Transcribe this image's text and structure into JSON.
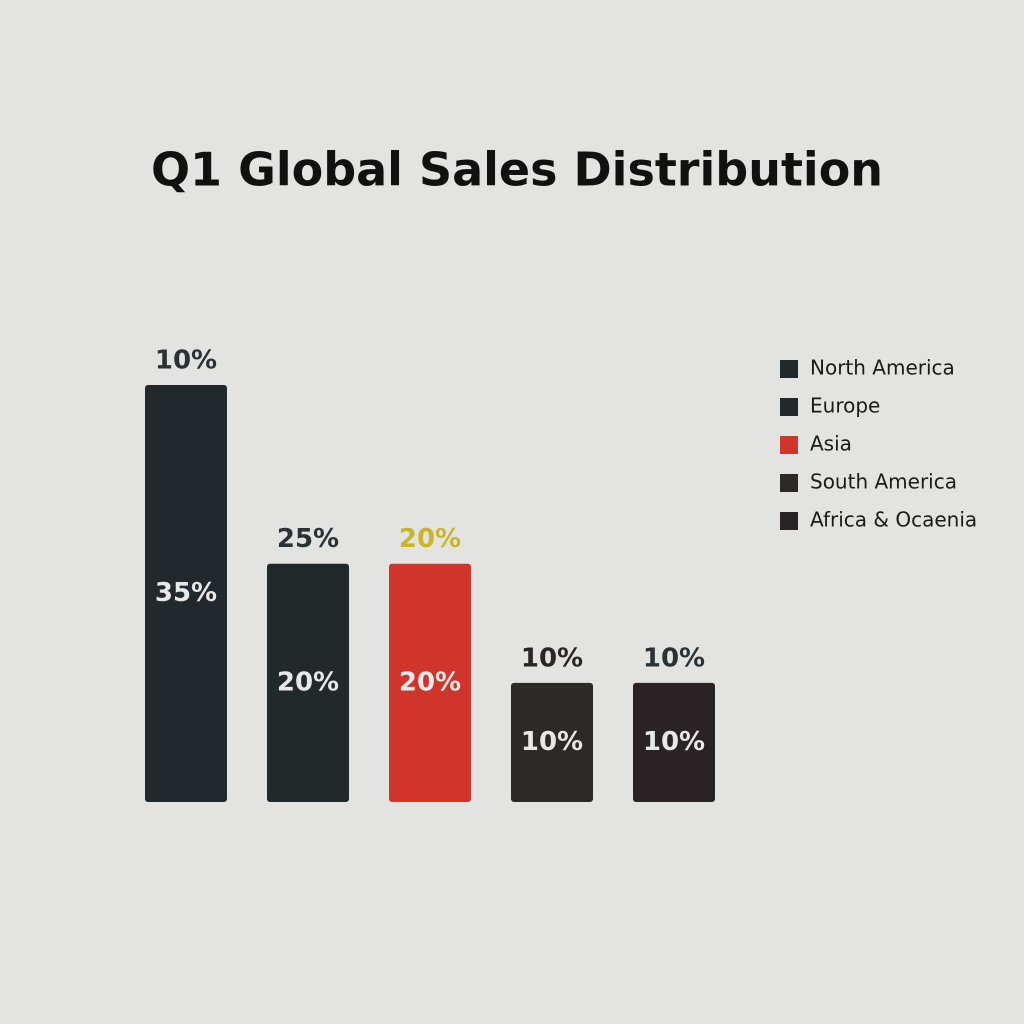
{
  "chart_data": {
    "type": "bar",
    "title": "Q1 Global Sales Distribution",
    "categories": [
      "North America",
      "Europe",
      "Asia",
      "South America",
      "Africa & Ocaenia"
    ],
    "values": [
      35,
      20,
      20,
      10,
      10
    ],
    "value_labels": [
      "35%",
      "20%",
      "20%",
      "10%",
      "10%"
    ],
    "annotations": [
      "10%",
      "25%",
      "20%",
      "10%",
      "10%"
    ],
    "annotation_colors": [
      "#2b3236",
      "#2b3236",
      "#c9b52a",
      "#2b2528",
      "#2b3236"
    ],
    "colors": [
      "#22292c",
      "#21292a",
      "#d0342a",
      "#2b2a26",
      "#2a2326"
    ],
    "legend": "top-right"
  }
}
